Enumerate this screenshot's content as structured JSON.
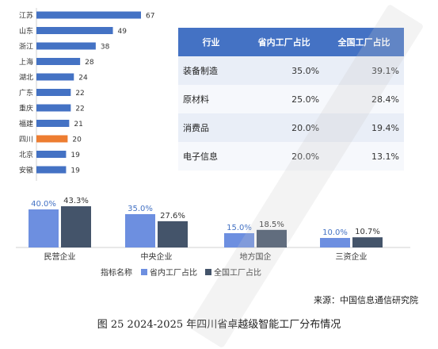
{
  "chart_data": [
    {
      "type": "bar",
      "orientation": "horizontal",
      "categories": [
        "江苏",
        "山东",
        "浙江",
        "上海",
        "湖北",
        "广东",
        "重庆",
        "福建",
        "四川",
        "北京",
        "安徽"
      ],
      "values": [
        67,
        49,
        38,
        28,
        24,
        22,
        22,
        21,
        20,
        19,
        19
      ],
      "highlight_category": "四川",
      "colors": {
        "bar": "#4472c4",
        "highlight": "#ed7d31"
      }
    },
    {
      "type": "table",
      "columns": [
        "行业",
        "省内工厂占比",
        "全国工厂占比"
      ],
      "rows": [
        [
          "装备制造",
          "35.0%",
          "39.1%"
        ],
        [
          "原材料",
          "25.0%",
          "28.4%"
        ],
        [
          "消费品",
          "20.0%",
          "19.4%"
        ],
        [
          "电子信息",
          "20.0%",
          "13.1%"
        ]
      ],
      "colors": {
        "header": "#4472c4"
      }
    },
    {
      "type": "bar",
      "categories": [
        "民营企业",
        "中央企业",
        "地方国企",
        "三资企业"
      ],
      "series": [
        {
          "name": "省内工厂占比",
          "values": [
            40.0,
            35.0,
            15.0,
            10.0
          ],
          "labels": [
            "40.0%",
            "35.0%",
            "15.0%",
            "10.0%"
          ],
          "color": "#6d8fe0"
        },
        {
          "name": "全国工厂占比",
          "values": [
            43.3,
            27.6,
            18.5,
            10.7
          ],
          "labels": [
            "43.3%",
            "27.6%",
            "18.5%",
            "10.7%"
          ],
          "color": "#44546a"
        }
      ],
      "legend_title": "指标名称",
      "legend_position": "bottom"
    }
  ],
  "source": "来源：中国信息通信研究院",
  "caption": "图 25 2024-2025 年四川省卓越级智能工厂分布情况"
}
